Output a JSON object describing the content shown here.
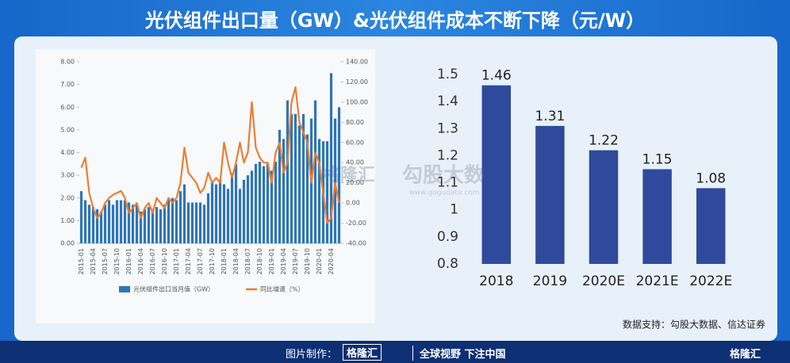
{
  "header": {
    "title": "光伏组件出口量（GW）&光伏组件成本不断下降（元/W）"
  },
  "chart_data": [
    {
      "type": "combo",
      "categories": [
        "2015-01",
        null,
        null,
        "2015-04",
        null,
        null,
        "2015-07",
        null,
        null,
        "2015-10",
        null,
        null,
        "2016-01",
        null,
        null,
        "2016-04",
        null,
        null,
        "2016-07",
        null,
        null,
        "2016-10",
        null,
        null,
        "2017-01",
        null,
        null,
        "2017-04",
        null,
        null,
        "2017-07",
        null,
        null,
        "2017-10",
        null,
        null,
        "2018-01",
        null,
        null,
        "2018-04",
        null,
        null,
        "2018-07",
        null,
        null,
        "2018-10",
        null,
        null,
        "2019-01",
        null,
        null,
        "2019-04",
        null,
        null,
        "2019-07",
        null,
        null,
        "2019-10",
        null,
        null,
        "2020-01",
        null,
        null,
        "2020-04",
        null,
        null
      ],
      "series": [
        {
          "name": "光伏组件出口当月值（GW）",
          "type": "bar",
          "color": "#2f75b5",
          "values": [
            2.3,
            1.9,
            1.7,
            1.6,
            1.5,
            1.4,
            1.7,
            1.9,
            1.7,
            1.9,
            1.9,
            1.9,
            1.8,
            1.7,
            1.7,
            1.4,
            1.5,
            1.6,
            1.5,
            1.6,
            1.5,
            1.7,
            2.0,
            2.0,
            1.9,
            2.3,
            2.6,
            1.8,
            1.8,
            1.8,
            1.8,
            1.7,
            2.2,
            2.7,
            2.6,
            2.8,
            2.6,
            2.4,
            3.1,
            3.5,
            2.4,
            2.8,
            3.0,
            3.2,
            3.5,
            3.6,
            3.4,
            3.5,
            3.2,
            3.6,
            5.0,
            4.6,
            6.3,
            5.7,
            5.7,
            5.2,
            5.7,
            4.8,
            5.5,
            6.3,
            4.6,
            4.5,
            4.5,
            7.5,
            5.5,
            6.0
          ]
        },
        {
          "name": "同比增速（%）",
          "type": "line",
          "axis": "y2",
          "color": "#ed7d31",
          "values": [
            35,
            45,
            10,
            -5,
            -15,
            -10,
            0,
            5,
            8,
            10,
            12,
            5,
            -10,
            -5,
            0,
            -15,
            -5,
            0,
            -10,
            5,
            0,
            -5,
            5,
            0,
            5,
            20,
            55,
            30,
            25,
            20,
            10,
            15,
            30,
            20,
            25,
            20,
            60,
            40,
            25,
            40,
            60,
            40,
            50,
            100,
            55,
            45,
            40,
            40,
            20,
            50,
            60,
            30,
            40,
            100,
            115,
            80,
            70,
            60,
            20,
            50,
            40,
            10,
            -20,
            -15,
            20,
            0
          ]
        }
      ],
      "ylim": [
        0,
        8
      ],
      "yticks": [
        {
          "value": 0,
          "label": "0.00"
        },
        {
          "value": 1,
          "label": "1.00"
        },
        {
          "value": 2,
          "label": "2.00"
        },
        {
          "value": 3,
          "label": "3.00"
        },
        {
          "value": 4,
          "label": "4.00"
        },
        {
          "value": 5,
          "label": "5.00"
        },
        {
          "value": 6,
          "label": "6.00"
        },
        {
          "value": 7,
          "label": "7.00"
        },
        {
          "value": 8,
          "label": "8.00"
        }
      ],
      "y2lim": [
        -40,
        140
      ],
      "y2ticks": [
        {
          "value": -40,
          "label": "-40.00"
        },
        {
          "value": -20,
          "label": "-20.00"
        },
        {
          "value": 0,
          "label": "0.00"
        },
        {
          "value": 20,
          "label": "20.00"
        },
        {
          "value": 40,
          "label": "40.00"
        },
        {
          "value": 60,
          "label": "60.00"
        },
        {
          "value": 80,
          "label": "80.00"
        },
        {
          "value": 100,
          "label": "100.00"
        },
        {
          "value": 120,
          "label": "120.00"
        },
        {
          "value": 140,
          "label": "140.00"
        }
      ],
      "legend": "bottom"
    },
    {
      "type": "bar",
      "categories": [
        "2018",
        "2019",
        "2020E",
        "2021E",
        "2022E"
      ],
      "values": [
        1.46,
        1.31,
        1.22,
        1.15,
        1.08
      ],
      "color": "#2f4a9c",
      "ylim": [
        0.8,
        1.5
      ],
      "yticks": [
        0.8,
        0.9,
        1,
        1.1,
        1.2,
        1.3,
        1.4,
        1.5
      ],
      "data_labels": true
    }
  ],
  "source": "数据支持：勾股大数据、信达证券",
  "watermarks": [
    "格隆汇",
    "勾股大数据",
    "www.gogudata.com"
  ],
  "footer": {
    "label": "图片制作：",
    "brand": "格隆汇",
    "slogan": "全球视野 下注中国",
    "logo": "格隆汇"
  }
}
